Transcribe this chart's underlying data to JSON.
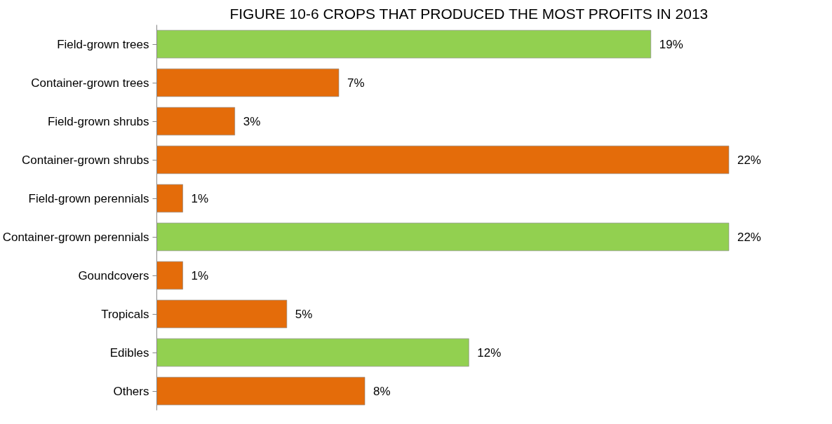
{
  "chart_data": {
    "type": "bar",
    "orientation": "horizontal",
    "title": "FIGURE 10-6 CROPS THAT  PRODUCED THE MOST PROFITS IN 2013",
    "categories": [
      "Field-grown trees",
      "Container-grown trees",
      "Field-grown shrubs",
      "Container-grown shrubs",
      "Field-grown perennials",
      "Container-grown perennials",
      "Goundcovers",
      "Tropicals",
      "Edibles",
      "Others"
    ],
    "values": [
      19,
      7,
      3,
      22,
      1,
      22,
      1,
      5,
      12,
      8
    ],
    "colors": [
      "#92d050",
      "#e46c0a",
      "#e46c0a",
      "#e46c0a",
      "#e46c0a",
      "#92d050",
      "#e46c0a",
      "#e46c0a",
      "#92d050",
      "#e46c0a"
    ],
    "value_labels": [
      "19%",
      "7%",
      "3%",
      "22%",
      "1%",
      "22%",
      "1%",
      "5%",
      "12%",
      "8%"
    ],
    "grid": false
  }
}
